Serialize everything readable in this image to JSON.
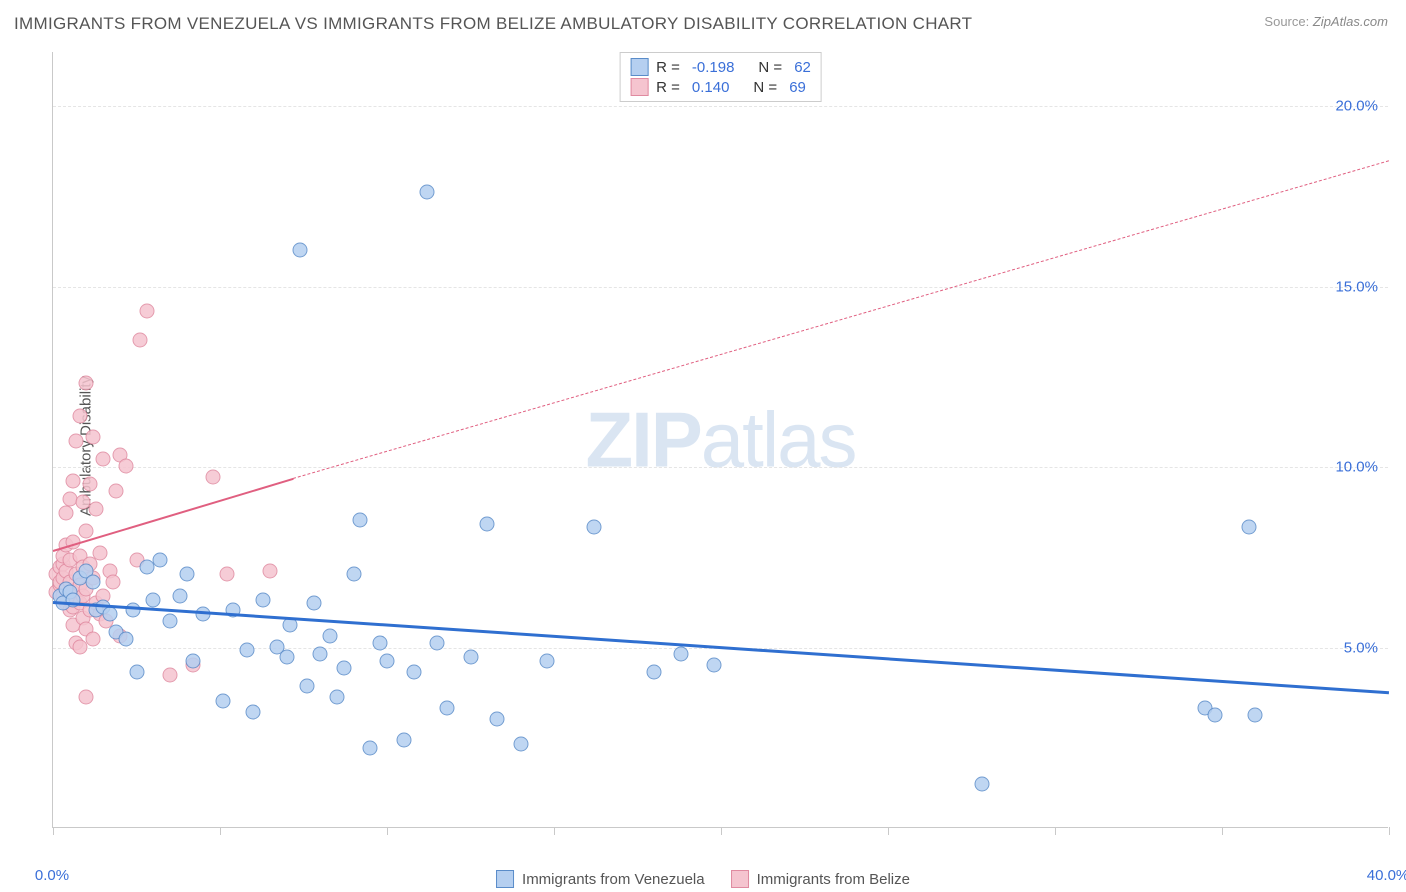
{
  "title": "IMMIGRANTS FROM VENEZUELA VS IMMIGRANTS FROM BELIZE AMBULATORY DISABILITY CORRELATION CHART",
  "source_label": "Source:",
  "source_value": "ZipAtlas.com",
  "ylabel": "Ambulatory Disability",
  "watermark_bold": "ZIP",
  "watermark_rest": "atlas",
  "chart": {
    "type": "scatter",
    "xlim": [
      0,
      40
    ],
    "ylim": [
      0,
      21.5
    ],
    "x_ticks_minor": [
      0,
      5,
      10,
      15,
      20,
      25,
      30,
      35,
      40
    ],
    "x_axis_labels": [
      {
        "x": 0,
        "text": "0.0%"
      },
      {
        "x": 40,
        "text": "40.0%"
      }
    ],
    "y_gridlines": [
      5,
      10,
      15,
      20
    ],
    "y_axis_labels": [
      {
        "y": 5,
        "text": "5.0%"
      },
      {
        "y": 10,
        "text": "10.0%"
      },
      {
        "y": 15,
        "text": "15.0%"
      },
      {
        "y": 20,
        "text": "20.0%"
      }
    ],
    "axis_label_color": "#3a6fd8",
    "background_color": "#ffffff",
    "grid_color": "#e5e5e5",
    "series": {
      "venezuela": {
        "label": "Immigrants from Venezuela",
        "marker_fill": "#b5cff0",
        "marker_stroke": "#5a8cc9",
        "marker_opacity": 0.85,
        "trend_color": "#2f6fd0",
        "trend_start": [
          0,
          6.3
        ],
        "trend_end": [
          40,
          3.8
        ],
        "trend_style": "solid",
        "R": "-0.198",
        "N": "62",
        "points": [
          [
            0.2,
            6.4
          ],
          [
            0.3,
            6.2
          ],
          [
            0.4,
            6.6
          ],
          [
            0.5,
            6.5
          ],
          [
            0.6,
            6.3
          ],
          [
            0.8,
            6.9
          ],
          [
            1.0,
            7.1
          ],
          [
            1.2,
            6.8
          ],
          [
            1.3,
            6.0
          ],
          [
            1.5,
            6.1
          ],
          [
            1.7,
            5.9
          ],
          [
            1.9,
            5.4
          ],
          [
            2.2,
            5.2
          ],
          [
            2.4,
            6.0
          ],
          [
            2.5,
            4.3
          ],
          [
            2.8,
            7.2
          ],
          [
            3.0,
            6.3
          ],
          [
            3.2,
            7.4
          ],
          [
            3.5,
            5.7
          ],
          [
            3.8,
            6.4
          ],
          [
            4.0,
            7.0
          ],
          [
            4.2,
            4.6
          ],
          [
            4.5,
            5.9
          ],
          [
            5.1,
            3.5
          ],
          [
            5.4,
            6.0
          ],
          [
            5.8,
            4.9
          ],
          [
            6.0,
            3.2
          ],
          [
            6.3,
            6.3
          ],
          [
            6.7,
            5.0
          ],
          [
            7.0,
            4.7
          ],
          [
            7.1,
            5.6
          ],
          [
            7.4,
            16.0
          ],
          [
            7.6,
            3.9
          ],
          [
            7.8,
            6.2
          ],
          [
            8.0,
            4.8
          ],
          [
            8.3,
            5.3
          ],
          [
            8.5,
            3.6
          ],
          [
            8.7,
            4.4
          ],
          [
            9.0,
            7.0
          ],
          [
            9.2,
            8.5
          ],
          [
            9.5,
            2.2
          ],
          [
            9.8,
            5.1
          ],
          [
            10.0,
            4.6
          ],
          [
            10.5,
            2.4
          ],
          [
            10.8,
            4.3
          ],
          [
            11.2,
            17.6
          ],
          [
            11.5,
            5.1
          ],
          [
            11.8,
            3.3
          ],
          [
            12.5,
            4.7
          ],
          [
            13.0,
            8.4
          ],
          [
            13.3,
            3.0
          ],
          [
            14.0,
            2.3
          ],
          [
            14.8,
            4.6
          ],
          [
            16.2,
            8.3
          ],
          [
            18.0,
            4.3
          ],
          [
            18.8,
            4.8
          ],
          [
            19.8,
            4.5
          ],
          [
            27.8,
            1.2
          ],
          [
            34.5,
            3.3
          ],
          [
            34.8,
            3.1
          ],
          [
            35.8,
            8.3
          ],
          [
            36.0,
            3.1
          ]
        ]
      },
      "belize": {
        "label": "Immigrants from Belize",
        "marker_fill": "#f5c4cf",
        "marker_stroke": "#e08aa0",
        "marker_opacity": 0.85,
        "trend_color": "#e05f80",
        "trend_start": [
          0,
          7.7
        ],
        "trend_solid_end": [
          7.2,
          9.7
        ],
        "trend_dash_end": [
          40,
          18.5
        ],
        "R": "0.140",
        "N": "69",
        "points": [
          [
            0.1,
            6.5
          ],
          [
            0.1,
            7.0
          ],
          [
            0.2,
            6.7
          ],
          [
            0.2,
            6.8
          ],
          [
            0.2,
            7.2
          ],
          [
            0.3,
            6.4
          ],
          [
            0.3,
            6.9
          ],
          [
            0.3,
            7.3
          ],
          [
            0.3,
            7.5
          ],
          [
            0.4,
            6.2
          ],
          [
            0.4,
            6.6
          ],
          [
            0.4,
            7.1
          ],
          [
            0.4,
            7.8
          ],
          [
            0.4,
            8.7
          ],
          [
            0.5,
            6.0
          ],
          [
            0.5,
            6.3
          ],
          [
            0.5,
            6.8
          ],
          [
            0.5,
            7.4
          ],
          [
            0.5,
            9.1
          ],
          [
            0.6,
            5.6
          ],
          [
            0.6,
            6.1
          ],
          [
            0.6,
            6.5
          ],
          [
            0.6,
            7.9
          ],
          [
            0.6,
            9.6
          ],
          [
            0.7,
            5.1
          ],
          [
            0.7,
            6.3
          ],
          [
            0.7,
            7.0
          ],
          [
            0.7,
            10.7
          ],
          [
            0.8,
            5.0
          ],
          [
            0.8,
            6.2
          ],
          [
            0.8,
            6.7
          ],
          [
            0.8,
            7.5
          ],
          [
            0.8,
            11.4
          ],
          [
            0.9,
            5.8
          ],
          [
            0.9,
            6.4
          ],
          [
            0.9,
            7.2
          ],
          [
            0.9,
            9.0
          ],
          [
            1.0,
            3.6
          ],
          [
            1.0,
            5.5
          ],
          [
            1.0,
            6.6
          ],
          [
            1.0,
            8.2
          ],
          [
            1.0,
            12.3
          ],
          [
            1.1,
            6.0
          ],
          [
            1.1,
            7.3
          ],
          [
            1.1,
            9.5
          ],
          [
            1.2,
            5.2
          ],
          [
            1.2,
            6.9
          ],
          [
            1.2,
            10.8
          ],
          [
            1.3,
            6.2
          ],
          [
            1.3,
            8.8
          ],
          [
            1.4,
            5.9
          ],
          [
            1.4,
            7.6
          ],
          [
            1.5,
            6.4
          ],
          [
            1.5,
            10.2
          ],
          [
            1.6,
            5.7
          ],
          [
            1.7,
            7.1
          ],
          [
            1.8,
            6.8
          ],
          [
            1.9,
            9.3
          ],
          [
            2.0,
            5.3
          ],
          [
            2.0,
            10.3
          ],
          [
            2.2,
            10.0
          ],
          [
            2.5,
            7.4
          ],
          [
            2.6,
            13.5
          ],
          [
            2.8,
            14.3
          ],
          [
            3.5,
            4.2
          ],
          [
            4.2,
            4.5
          ],
          [
            4.8,
            9.7
          ],
          [
            5.2,
            7.0
          ],
          [
            6.5,
            7.1
          ]
        ]
      }
    }
  },
  "legend_top": [
    {
      "swatch": "venezuela",
      "R_label": "R =",
      "N_label": "N ="
    },
    {
      "swatch": "belize",
      "R_label": "R =",
      "N_label": "N ="
    }
  ]
}
